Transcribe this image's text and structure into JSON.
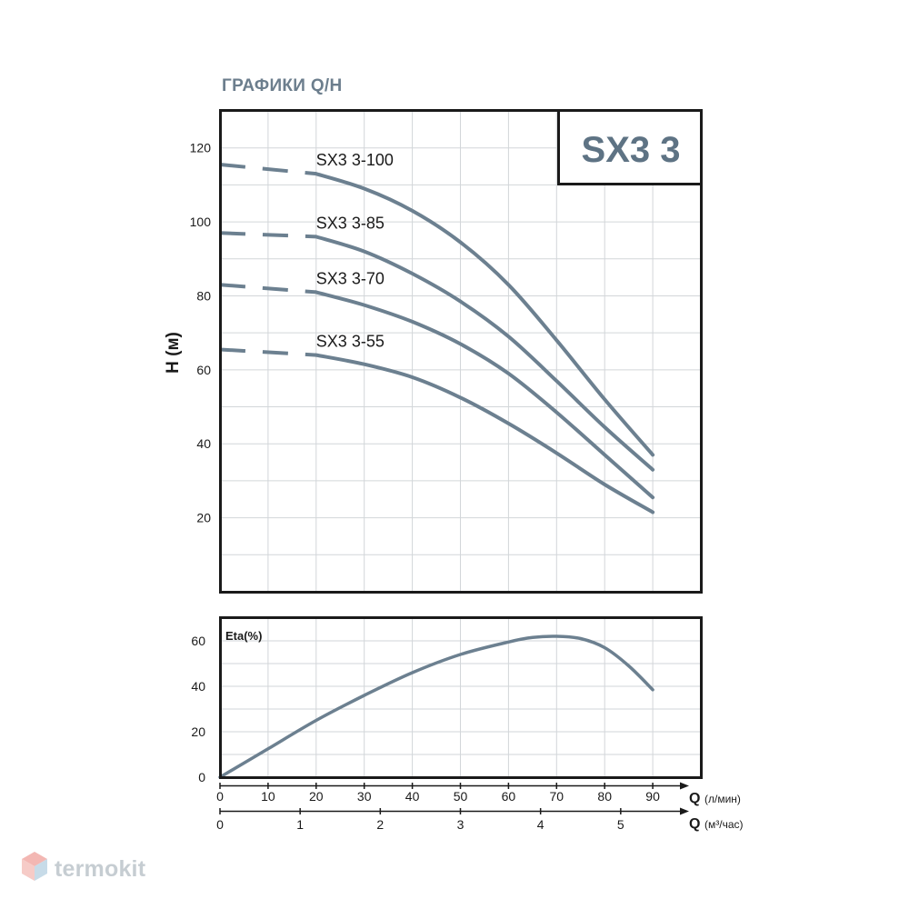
{
  "header": {
    "title": "ГРАФИКИ Q/H"
  },
  "model_badge": {
    "text": "SX3 3"
  },
  "watermark": {
    "text": "termokit"
  },
  "colors": {
    "curve": "#6c8090",
    "grid": "#d2d6d9",
    "frame": "#1a1a1a",
    "badge_text": "#5e7384",
    "title": "#6c7e8d"
  },
  "chart_data": [
    {
      "type": "line",
      "ylabel": "H (м)",
      "xlim": [
        0,
        100
      ],
      "ylim": [
        0,
        130
      ],
      "y_ticks": [
        20,
        40,
        60,
        80,
        100,
        120
      ],
      "grid": true,
      "series": [
        {
          "name": "SX3 3-100",
          "x": [
            20,
            30,
            40,
            50,
            60,
            70,
            80,
            90
          ],
          "y": [
            113,
            109,
            103,
            94.5,
            83,
            68,
            52,
            37
          ],
          "dashed_x": [
            0,
            20
          ],
          "dashed_y": [
            115.5,
            113
          ]
        },
        {
          "name": "SX3 3-85",
          "x": [
            20,
            30,
            40,
            50,
            60,
            70,
            80,
            90
          ],
          "y": [
            96,
            92,
            86,
            78.5,
            69,
            57,
            44.5,
            33
          ],
          "dashed_x": [
            0,
            20
          ],
          "dashed_y": [
            97,
            96
          ]
        },
        {
          "name": "SX3 3-70",
          "x": [
            20,
            30,
            40,
            50,
            60,
            70,
            80,
            90
          ],
          "y": [
            81,
            77.5,
            73,
            67,
            59,
            48.5,
            37,
            25.5
          ],
          "dashed_x": [
            0,
            20
          ],
          "dashed_y": [
            83,
            81
          ]
        },
        {
          "name": "SX3 3-55",
          "x": [
            20,
            30,
            40,
            50,
            60,
            70,
            80,
            90
          ],
          "y": [
            64,
            61.5,
            58,
            52.5,
            45.5,
            37.5,
            29,
            21.5
          ],
          "dashed_x": [
            0,
            20
          ],
          "dashed_y": [
            65.5,
            64
          ]
        }
      ]
    },
    {
      "type": "line",
      "ylabel": "Eta(%)",
      "xlim": [
        0,
        100
      ],
      "ylim": [
        0,
        70
      ],
      "y_ticks": [
        0,
        20,
        40,
        60
      ],
      "grid": true,
      "series": [
        {
          "x": [
            0,
            10,
            20,
            30,
            40,
            50,
            60,
            65,
            70,
            75,
            80,
            85,
            90
          ],
          "y": [
            0,
            12.5,
            25,
            36,
            46,
            54,
            59.5,
            61.5,
            62,
            61,
            57,
            49,
            38.5
          ]
        }
      ]
    }
  ],
  "x_axis_lpm": {
    "label": "Q",
    "unit": "(л/мин)",
    "ticks": [
      0,
      10,
      20,
      30,
      40,
      50,
      60,
      70,
      80,
      90
    ]
  },
  "x_axis_m3h": {
    "label": "Q",
    "unit": "(м³/час)",
    "ticks": [
      0,
      1,
      2,
      3,
      4,
      5
    ],
    "lpm_per_unit": 16.6667
  }
}
